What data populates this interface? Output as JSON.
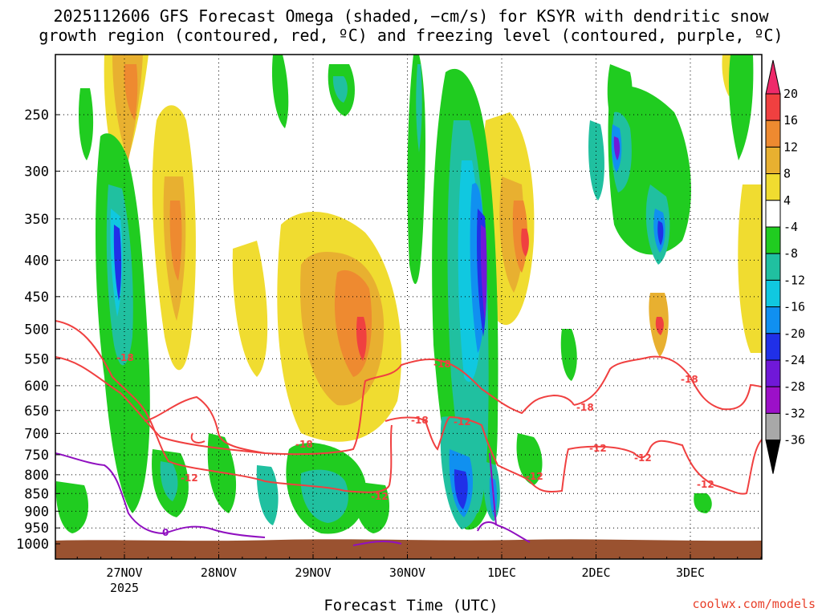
{
  "title_line1": "2025112606 GFS Forecast Omega (shaded, −cm/s) for KSYR with dendritic snow",
  "title_line2": "growth region (contoured, red, ºC) and freezing level (contoured, purple, ºC)",
  "xaxis_title": "Forecast Time (UTC)",
  "credit": "coolwx.com/models",
  "colors": {
    "dgz_contour": "#f04040",
    "freezing_contour": "#9010c0",
    "terrain": "#9a5230",
    "grid": "#000000"
  },
  "chart_data": {
    "type": "heatmap",
    "title": "2025112606 GFS Forecast Omega (shaded, −cm/s) for KSYR with dendritic snow growth region (contoured, red, ºC) and freezing level (contoured, purple, ºC)",
    "xlabel": "Forecast Time (UTC)",
    "ylabel": "",
    "y_scale": "pressure (hPa), inverted",
    "y_ticks": [
      250,
      300,
      350,
      400,
      450,
      500,
      550,
      600,
      650,
      700,
      750,
      800,
      850,
      900,
      950,
      1000
    ],
    "x_ticks": [
      "27NOV",
      "28NOV",
      "29NOV",
      "30NOV",
      "1DEC",
      "2DEC",
      "3DEC"
    ],
    "x_tick_sublabel": "2025",
    "colorbar": {
      "levels": [
        20,
        16,
        12,
        8,
        4,
        -4,
        -8,
        -12,
        -16,
        -20,
        -24,
        -28,
        -32,
        -36
      ],
      "colors": [
        "#ee2a6a",
        "#f04040",
        "#ee8a30",
        "#e8b030",
        "#f0dc30",
        "#ffffff",
        "#20cc20",
        "#20c0a0",
        "#10c8e0",
        "#1090f0",
        "#2030e8",
        "#7018d8",
        "#9c10c8",
        "#a8a8a8",
        "#000000"
      ]
    },
    "grid": true,
    "contour_labels": {
      "dgz": [
        "-18",
        "-18",
        "-18",
        "-12",
        "-18",
        "-12",
        "-12",
        "-18",
        "-12",
        "-12",
        "-18",
        "-12",
        "-12"
      ],
      "freezing": [
        "0"
      ]
    }
  }
}
